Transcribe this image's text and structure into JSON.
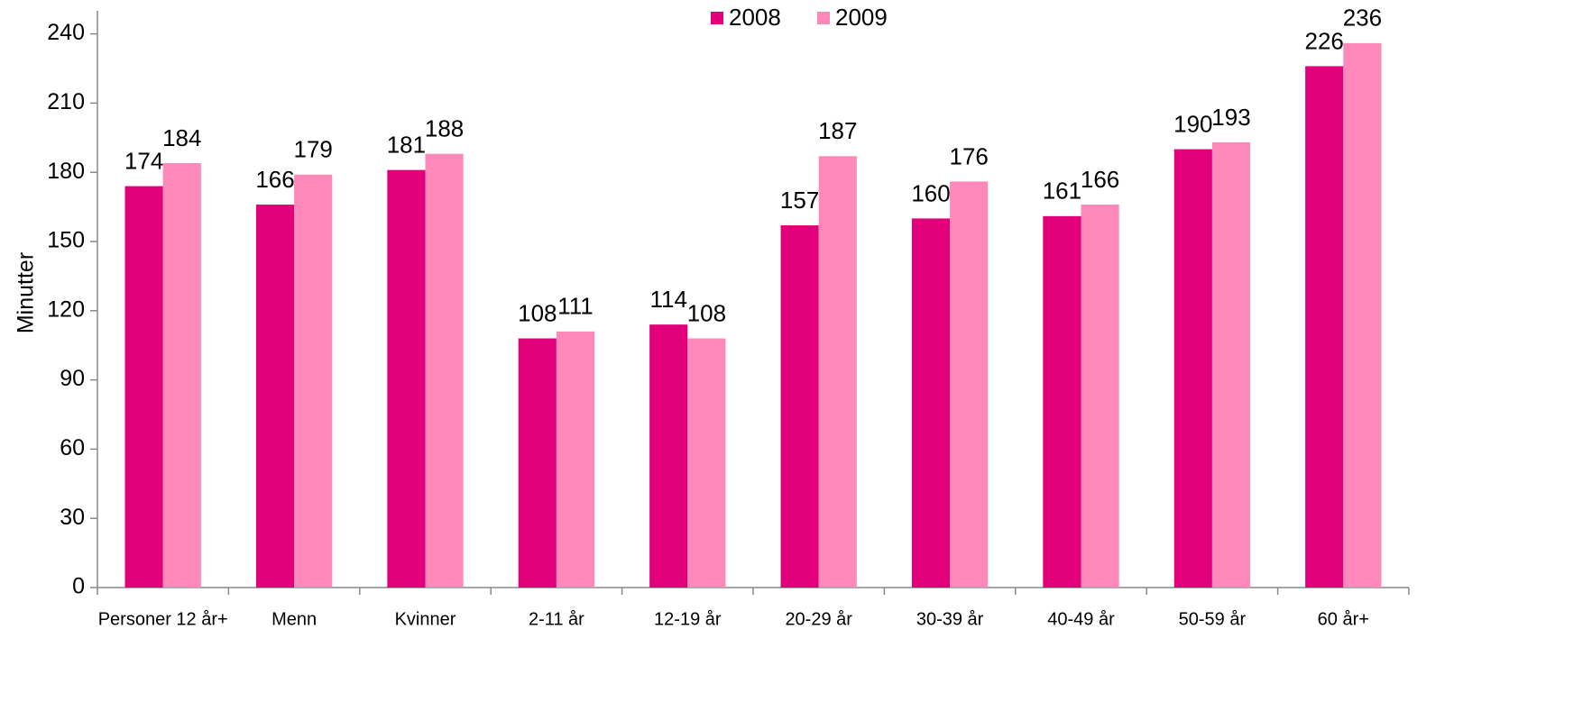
{
  "chart_data": {
    "type": "bar",
    "y_label": "Minutter",
    "categories": [
      "Personer 12 år+",
      "Menn",
      "Kvinner",
      "2-11 år",
      "12-19 år",
      "20-29 år",
      "30-39 år",
      "40-49 år",
      "50-59 år",
      "60 år+"
    ],
    "series": [
      {
        "name": "2008",
        "color": "#e2007a",
        "values": [
          174,
          166,
          181,
          108,
          114,
          157,
          160,
          161,
          190,
          226
        ]
      },
      {
        "name": "2009",
        "color": "#ff88bb",
        "values": [
          184,
          179,
          188,
          111,
          108,
          187,
          176,
          166,
          193,
          236
        ]
      }
    ],
    "ylim": [
      0,
      250
    ],
    "yticks": [
      0,
      30,
      60,
      90,
      120,
      150,
      180,
      210,
      240
    ],
    "legend": "top"
  }
}
